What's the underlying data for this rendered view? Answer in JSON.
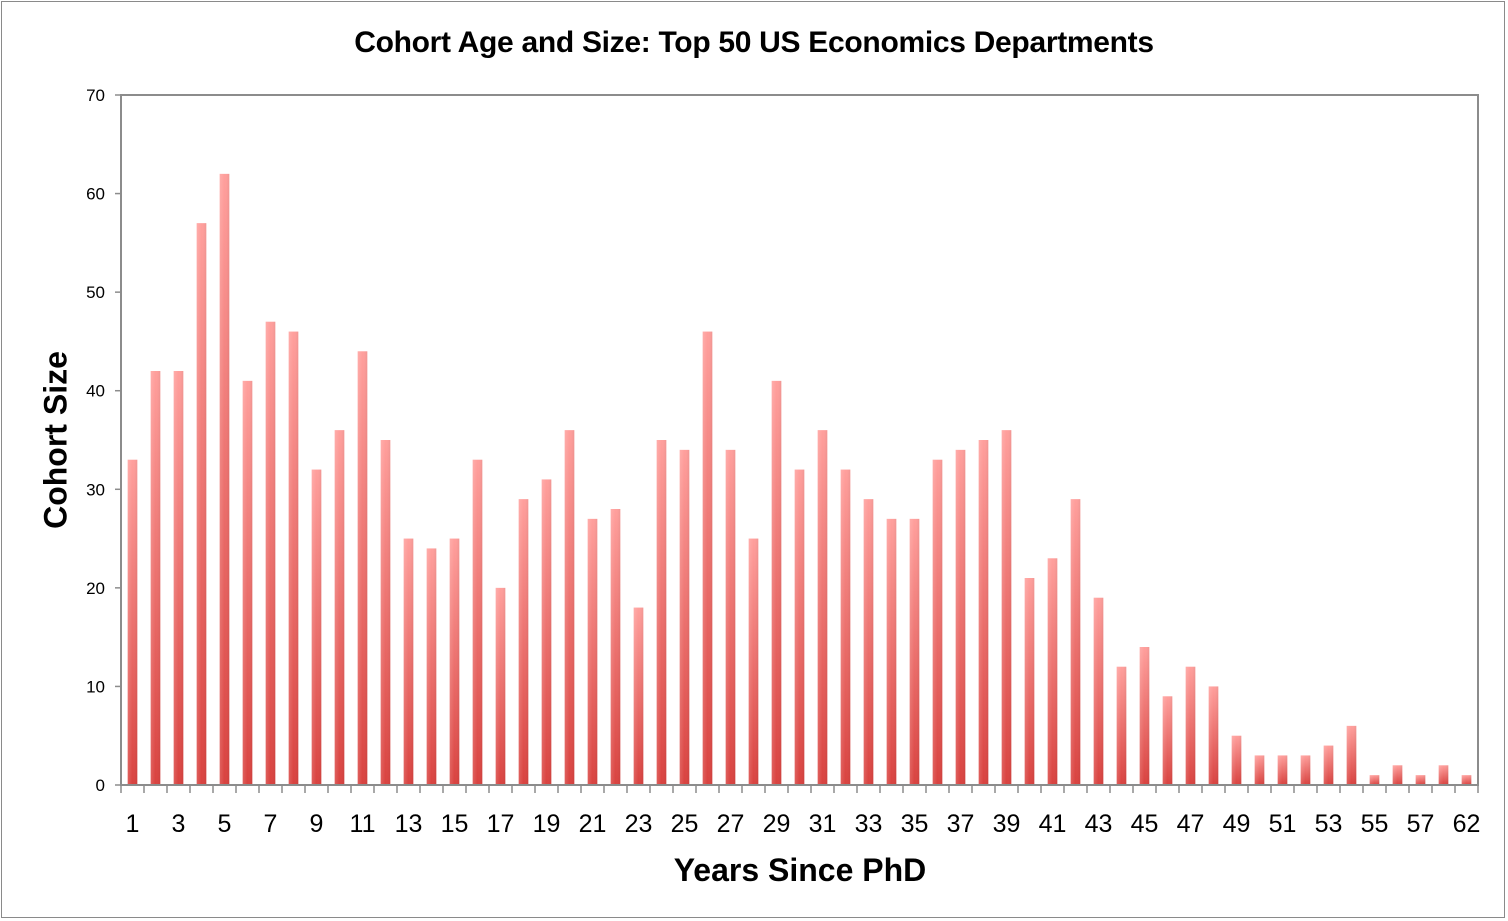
{
  "chart_data": {
    "type": "bar",
    "title": "Cohort Age and Size: Top 50 US Economics Departments",
    "xlabel": "Years Since PhD",
    "ylabel": "Cohort Size",
    "ylim": [
      0,
      70
    ],
    "yticks": [
      0,
      10,
      20,
      30,
      40,
      50,
      60,
      70
    ],
    "grid": false,
    "legend": null,
    "bar_color_top": "#ff9f9c",
    "bar_color_bottom": "#d9423f",
    "categories": [
      "1",
      "2",
      "3",
      "4",
      "5",
      "6",
      "7",
      "8",
      "9",
      "10",
      "11",
      "12",
      "13",
      "14",
      "15",
      "16",
      "17",
      "18",
      "19",
      "20",
      "21",
      "22",
      "23",
      "24",
      "25",
      "26",
      "27",
      "28",
      "29",
      "30",
      "31",
      "32",
      "33",
      "34",
      "35",
      "36",
      "37",
      "38",
      "39",
      "40",
      "41",
      "42",
      "43",
      "44",
      "45",
      "46",
      "47",
      "48",
      "49",
      "50",
      "51",
      "52",
      "53",
      "54",
      "55",
      "56",
      "57",
      "",
      "62"
    ],
    "visible_tick_labels": [
      "1",
      "3",
      "5",
      "7",
      "9",
      "11",
      "13",
      "15",
      "17",
      "19",
      "21",
      "23",
      "25",
      "27",
      "29",
      "31",
      "33",
      "35",
      "37",
      "39",
      "41",
      "43",
      "45",
      "47",
      "49",
      "51",
      "53",
      "55",
      "57",
      "62"
    ],
    "values": [
      33,
      42,
      42,
      57,
      62,
      41,
      47,
      46,
      32,
      36,
      44,
      35,
      25,
      24,
      25,
      33,
      20,
      29,
      31,
      36,
      27,
      28,
      18,
      35,
      34,
      46,
      34,
      25,
      41,
      32,
      36,
      32,
      29,
      27,
      27,
      33,
      34,
      35,
      36,
      21,
      23,
      29,
      19,
      12,
      14,
      9,
      12,
      10,
      5,
      3,
      3,
      3,
      4,
      6,
      1,
      2,
      1,
      2,
      1
    ]
  }
}
